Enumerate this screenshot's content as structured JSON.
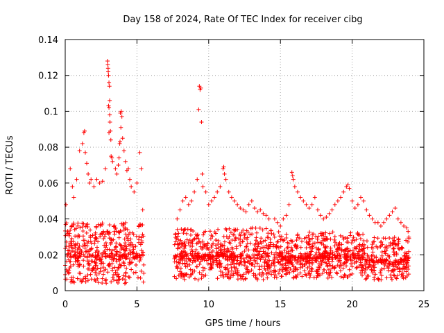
{
  "chart_data": {
    "type": "scatter",
    "title": "Day 158 of 2024, Rate Of TEC Index for receiver cibg",
    "xlabel": "GPS time / hours",
    "ylabel": "ROTI / TECUs",
    "xlim": [
      0,
      25
    ],
    "ylim": [
      0,
      0.14
    ],
    "xticks": [
      0,
      5,
      10,
      15,
      20,
      25
    ],
    "yticks": [
      0,
      0.02,
      0.04,
      0.06,
      0.08,
      0.1,
      0.12,
      0.14
    ],
    "xtick_labels": [
      "0",
      "5",
      "10",
      "15",
      "20",
      "25"
    ],
    "ytick_labels": [
      "0",
      "0.02",
      "0.04",
      "0.06",
      "0.08",
      "0.1",
      "0.12",
      "0.14"
    ],
    "grid": true,
    "marker": "+",
    "color": "#ff0000",
    "series": [
      {
        "name": "ROTI",
        "points": [
          [
            0.05,
            0.048
          ],
          [
            0.2,
            0.032
          ],
          [
            0.35,
            0.068
          ],
          [
            0.5,
            0.058
          ],
          [
            0.6,
            0.052
          ],
          [
            0.8,
            0.062
          ],
          [
            1.0,
            0.078
          ],
          [
            1.2,
            0.082
          ],
          [
            1.3,
            0.088
          ],
          [
            1.35,
            0.089
          ],
          [
            1.4,
            0.077
          ],
          [
            1.5,
            0.071
          ],
          [
            1.6,
            0.065
          ],
          [
            1.7,
            0.06
          ],
          [
            1.8,
            0.062
          ],
          [
            2.0,
            0.058
          ],
          [
            2.2,
            0.062
          ],
          [
            2.4,
            0.06
          ],
          [
            2.6,
            0.061
          ],
          [
            2.8,
            0.068
          ],
          [
            2.95,
            0.128
          ],
          [
            2.97,
            0.126
          ],
          [
            2.99,
            0.124
          ],
          [
            3.0,
            0.122
          ],
          [
            3.02,
            0.12
          ],
          [
            3.05,
            0.116
          ],
          [
            3.08,
            0.114
          ],
          [
            3.1,
            0.106
          ],
          [
            3.02,
            0.103
          ],
          [
            3.05,
            0.102
          ],
          [
            3.1,
            0.098
          ],
          [
            3.12,
            0.094
          ],
          [
            3.15,
            0.089
          ],
          [
            3.05,
            0.088
          ],
          [
            3.18,
            0.084
          ],
          [
            3.2,
            0.075
          ],
          [
            3.25,
            0.074
          ],
          [
            3.3,
            0.072
          ],
          [
            3.5,
            0.068
          ],
          [
            3.6,
            0.065
          ],
          [
            3.7,
            0.07
          ],
          [
            3.75,
            0.074
          ],
          [
            3.8,
            0.082
          ],
          [
            3.82,
            0.083
          ],
          [
            3.85,
            0.099
          ],
          [
            3.9,
            0.1
          ],
          [
            3.95,
            0.097
          ],
          [
            3.88,
            0.091
          ],
          [
            4.0,
            0.085
          ],
          [
            4.1,
            0.078
          ],
          [
            4.2,
            0.072
          ],
          [
            4.3,
            0.067
          ],
          [
            4.4,
            0.068
          ],
          [
            4.5,
            0.062
          ],
          [
            4.6,
            0.058
          ],
          [
            4.8,
            0.055
          ],
          [
            5.0,
            0.06
          ],
          [
            5.2,
            0.077
          ],
          [
            5.3,
            0.068
          ],
          [
            5.4,
            0.045
          ],
          [
            7.8,
            0.04
          ],
          [
            8.0,
            0.045
          ],
          [
            8.2,
            0.05
          ],
          [
            8.4,
            0.052
          ],
          [
            8.6,
            0.048
          ],
          [
            8.8,
            0.05
          ],
          [
            9.0,
            0.055
          ],
          [
            9.2,
            0.062
          ],
          [
            9.3,
            0.101
          ],
          [
            9.35,
            0.114
          ],
          [
            9.4,
            0.112
          ],
          [
            9.45,
            0.113
          ],
          [
            9.5,
            0.094
          ],
          [
            9.55,
            0.065
          ],
          [
            9.6,
            0.058
          ],
          [
            9.8,
            0.055
          ],
          [
            10.0,
            0.048
          ],
          [
            10.2,
            0.05
          ],
          [
            10.4,
            0.052
          ],
          [
            10.6,
            0.055
          ],
          [
            10.8,
            0.058
          ],
          [
            11.0,
            0.068
          ],
          [
            11.05,
            0.069
          ],
          [
            11.1,
            0.065
          ],
          [
            11.2,
            0.062
          ],
          [
            11.4,
            0.055
          ],
          [
            11.6,
            0.052
          ],
          [
            11.8,
            0.05
          ],
          [
            12.0,
            0.048
          ],
          [
            12.2,
            0.046
          ],
          [
            12.4,
            0.045
          ],
          [
            12.6,
            0.044
          ],
          [
            12.8,
            0.048
          ],
          [
            13.0,
            0.05
          ],
          [
            13.2,
            0.046
          ],
          [
            13.4,
            0.044
          ],
          [
            13.6,
            0.045
          ],
          [
            13.8,
            0.043
          ],
          [
            14.0,
            0.042
          ],
          [
            14.2,
            0.04
          ],
          [
            14.6,
            0.04
          ],
          [
            14.8,
            0.038
          ],
          [
            15.0,
            0.036
          ],
          [
            15.2,
            0.04
          ],
          [
            15.4,
            0.042
          ],
          [
            15.6,
            0.048
          ],
          [
            15.8,
            0.066
          ],
          [
            15.85,
            0.064
          ],
          [
            15.9,
            0.062
          ],
          [
            16.0,
            0.058
          ],
          [
            16.2,
            0.055
          ],
          [
            16.4,
            0.052
          ],
          [
            16.6,
            0.05
          ],
          [
            16.8,
            0.048
          ],
          [
            17.0,
            0.046
          ],
          [
            17.2,
            0.048
          ],
          [
            17.4,
            0.052
          ],
          [
            17.6,
            0.045
          ],
          [
            17.8,
            0.042
          ],
          [
            18.0,
            0.04
          ],
          [
            18.2,
            0.041
          ],
          [
            18.4,
            0.043
          ],
          [
            18.6,
            0.045
          ],
          [
            18.8,
            0.048
          ],
          [
            19.0,
            0.05
          ],
          [
            19.2,
            0.052
          ],
          [
            19.4,
            0.055
          ],
          [
            19.6,
            0.058
          ],
          [
            19.7,
            0.059
          ],
          [
            19.8,
            0.057
          ],
          [
            20.0,
            0.05
          ],
          [
            20.2,
            0.046
          ],
          [
            20.4,
            0.048
          ],
          [
            20.6,
            0.052
          ],
          [
            20.8,
            0.05
          ],
          [
            21.0,
            0.045
          ],
          [
            21.2,
            0.042
          ],
          [
            21.4,
            0.04
          ],
          [
            21.6,
            0.038
          ],
          [
            21.8,
            0.038
          ],
          [
            22.0,
            0.036
          ],
          [
            22.2,
            0.038
          ],
          [
            22.4,
            0.04
          ],
          [
            22.6,
            0.042
          ],
          [
            22.8,
            0.044
          ],
          [
            23.0,
            0.046
          ],
          [
            23.2,
            0.04
          ],
          [
            23.4,
            0.038
          ],
          [
            23.6,
            0.036
          ],
          [
            23.8,
            0.035
          ],
          [
            23.9,
            0.033
          ]
        ],
        "dense_bands": [
          {
            "x_start": 0.0,
            "x_end": 5.5,
            "y_low": 0.004,
            "y_high": 0.038,
            "density": 1.0
          },
          {
            "x_start": 7.6,
            "x_end": 14.4,
            "y_low": 0.006,
            "y_high": 0.035,
            "density": 1.0
          },
          {
            "x_start": 14.5,
            "x_end": 20.8,
            "y_low": 0.007,
            "y_high": 0.033,
            "density": 1.0
          },
          {
            "x_start": 20.8,
            "x_end": 24.0,
            "y_low": 0.006,
            "y_high": 0.03,
            "density": 0.9
          }
        ]
      }
    ]
  }
}
